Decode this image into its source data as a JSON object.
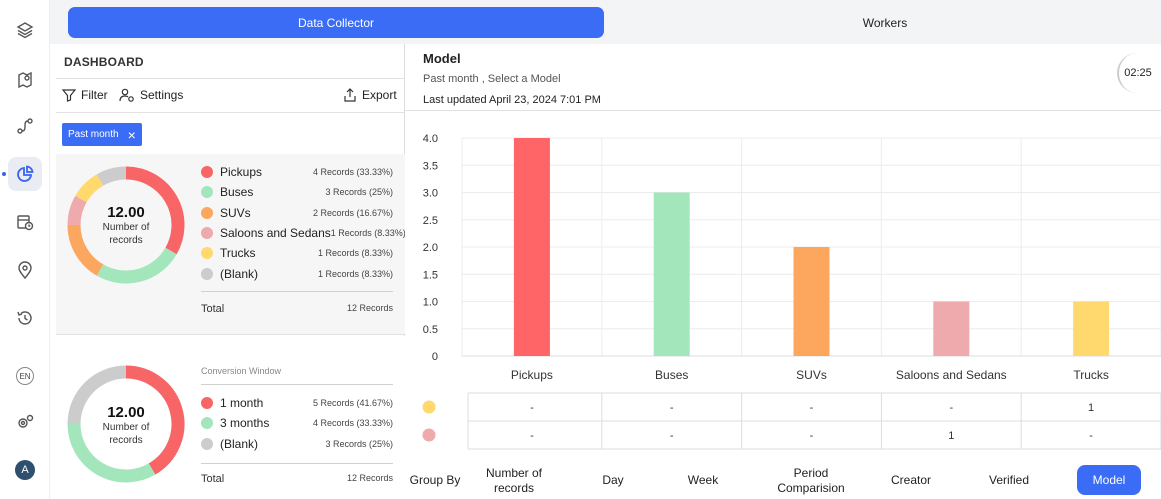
{
  "rail": {
    "icons": [
      "layers-icon",
      "map-pin-icon",
      "route-icon",
      "pie-chart-icon",
      "calendar-clock-icon",
      "location-gear-icon",
      "history-icon",
      "language-icon",
      "settings-icon"
    ],
    "lang_label": "EN",
    "avatar_letter": "A"
  },
  "topbar": {
    "tab_active": "Data Collector",
    "tab_other": "Workers"
  },
  "dashboard": {
    "title": "DASHBOARD",
    "filter_label": "Filter",
    "settings_label": "Settings",
    "export_label": "Export",
    "chip_label": "Past month",
    "chip_close": "×",
    "card1": {
      "total_value": "12.00",
      "total_caption": "Number of records",
      "legend": [
        {
          "name": "Pickups",
          "records": "4 Records (33.33%)",
          "color": "#f76566",
          "value": 4
        },
        {
          "name": "Buses",
          "records": "3 Records (25%)",
          "color": "#a3e6bb",
          "value": 3
        },
        {
          "name": "SUVs",
          "records": "2 Records (16.67%)",
          "color": "#fba75f",
          "value": 2
        },
        {
          "name": "Saloons and Sedans",
          "records": "1 Records (8.33%)",
          "color": "#eeaaad",
          "value": 1
        },
        {
          "name": "Trucks",
          "records": "1 Records (8.33%)",
          "color": "#ffd86e",
          "value": 1
        },
        {
          "name": "(Blank)",
          "records": "1 Records (8.33%)",
          "color": "#cccccc",
          "value": 1
        }
      ],
      "total_label": "Total",
      "total_records": "12 Records"
    },
    "card2": {
      "section_label": "Conversion Window",
      "total_value": "12.00",
      "total_caption": "Number of records",
      "legend": [
        {
          "name": "1 month",
          "records": "5 Records (41.67%)",
          "color": "#f76566",
          "value": 5
        },
        {
          "name": "3 months",
          "records": "4 Records (33.33%)",
          "color": "#a3e6bb",
          "value": 4
        },
        {
          "name": "(Blank)",
          "records": "3 Records (25%)",
          "color": "#cccccc",
          "value": 3
        }
      ],
      "total_label": "Total",
      "total_records": "12 Records"
    }
  },
  "model": {
    "title": "Model",
    "subtitle": "Past month , Select a Model",
    "updated": "Last updated April 23, 2024 7:01 PM",
    "timer": "02:25"
  },
  "chart_data": {
    "type": "bar",
    "categories": [
      "Pickups",
      "Buses",
      "SUVs",
      "Saloons and Sedans",
      "Trucks"
    ],
    "values": [
      4,
      3,
      2,
      1,
      1
    ],
    "colors": [
      "#ff6466",
      "#a3e6bb",
      "#fca65e",
      "#eeaaad",
      "#ffd86e"
    ],
    "y_ticks": [
      "4.0",
      "3.5",
      "3.0",
      "2.5",
      "2.0",
      "1.5",
      "1.0",
      "0.5",
      "0"
    ],
    "ylim": [
      0,
      4
    ],
    "grid": true,
    "table_rows": [
      {
        "color": "#ffd86e",
        "cells": [
          "-",
          "-",
          "-",
          "-",
          "1"
        ]
      },
      {
        "color": "#eeaaad",
        "cells": [
          "-",
          "-",
          "-",
          "1",
          "-"
        ]
      }
    ]
  },
  "group_by": {
    "label": "Group By",
    "options": [
      "Number of records",
      "Day",
      "Week",
      "Period Comparision",
      "Creator",
      "Verified",
      "Model"
    ],
    "selected": "Model"
  }
}
